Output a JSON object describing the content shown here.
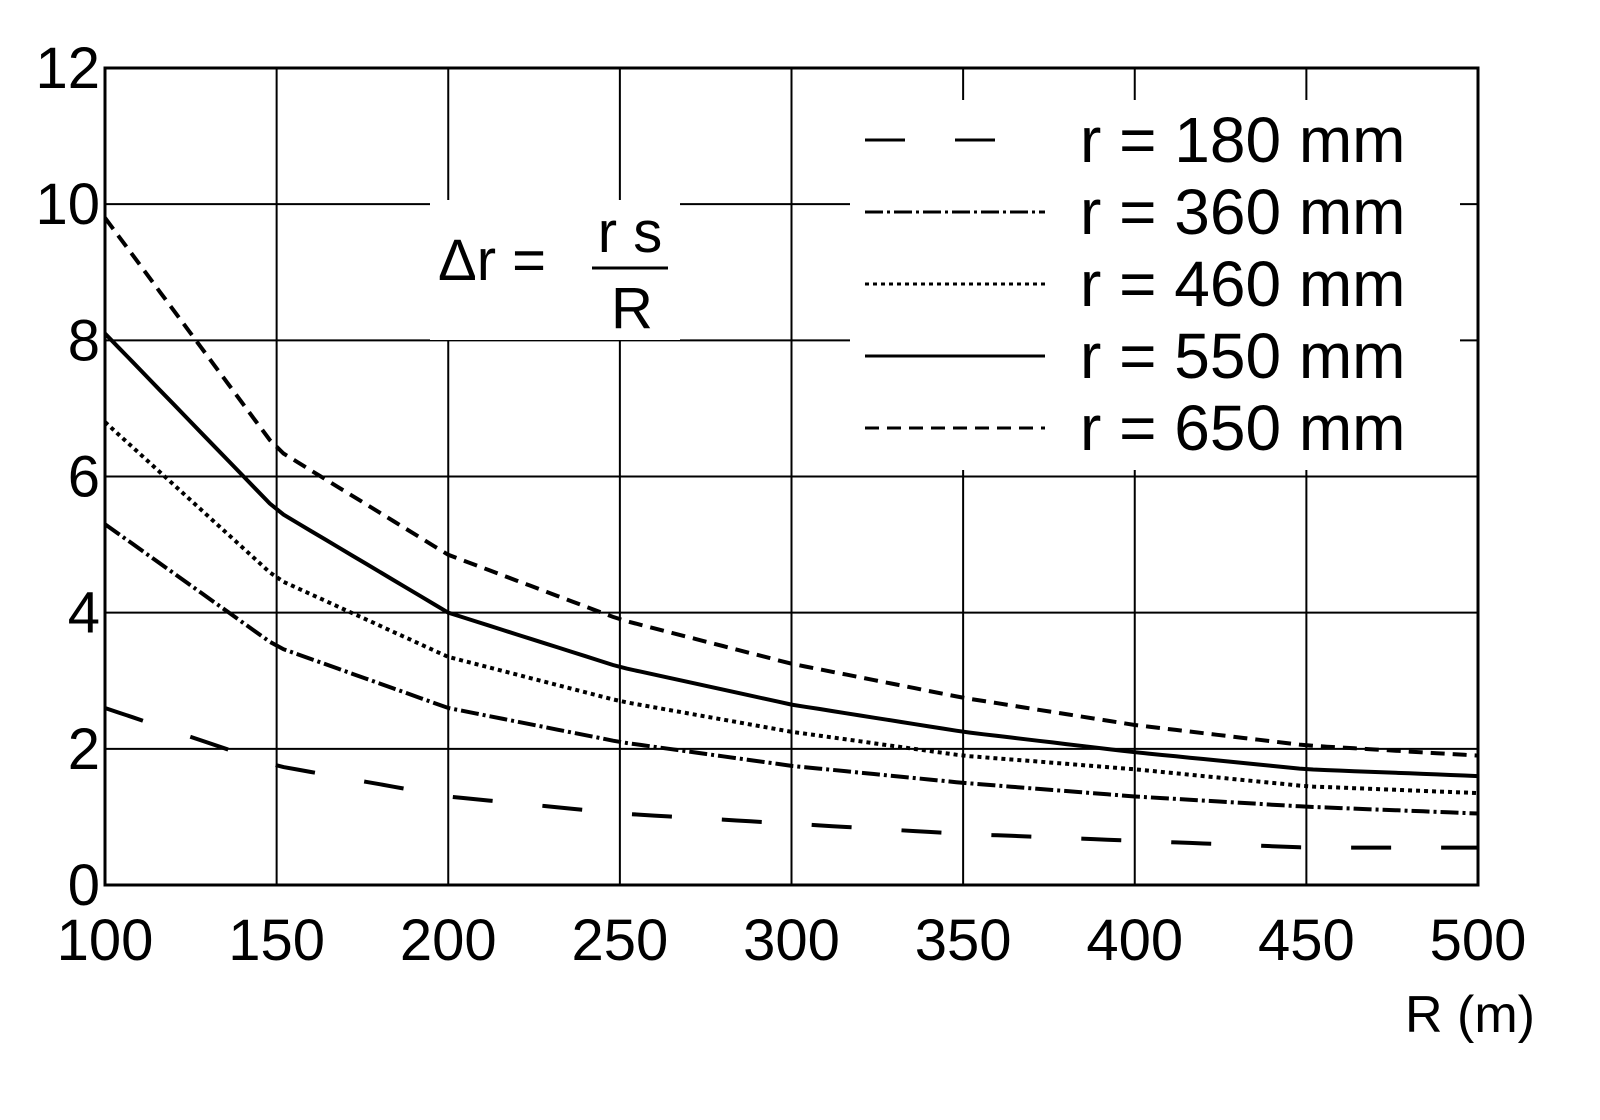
{
  "chart_data": {
    "type": "line",
    "title": "",
    "xlabel": "R (m)",
    "ylabel": "",
    "xlim": [
      100,
      500
    ],
    "ylim": [
      0,
      12
    ],
    "grid": true,
    "legend_position": "upper right",
    "x": [
      100,
      150,
      200,
      250,
      300,
      350,
      400,
      450,
      500
    ],
    "x_ticks": [
      "100",
      "150",
      "200",
      "250",
      "300",
      "350",
      "400",
      "450",
      "500"
    ],
    "y_ticks": [
      "0",
      "2",
      "4",
      "6",
      "8",
      "10",
      "12"
    ],
    "annotation": {
      "lhs": "Δr =",
      "numerator": "r s",
      "denominator": "R"
    },
    "series": [
      {
        "name": "r = 180 mm",
        "style": "long-dash",
        "values": [
          2.6,
          1.75,
          1.3,
          1.05,
          0.9,
          0.75,
          0.65,
          0.55,
          0.55
        ]
      },
      {
        "name": "r = 360 mm",
        "style": "dash-dot",
        "values": [
          5.3,
          3.5,
          2.6,
          2.1,
          1.75,
          1.5,
          1.3,
          1.15,
          1.05
        ]
      },
      {
        "name": "r = 460 mm",
        "style": "dotted",
        "values": [
          6.8,
          4.5,
          3.35,
          2.7,
          2.25,
          1.9,
          1.7,
          1.45,
          1.35
        ]
      },
      {
        "name": "r = 550 mm",
        "style": "solid",
        "values": [
          8.1,
          5.5,
          4.0,
          3.2,
          2.65,
          2.25,
          1.95,
          1.7,
          1.6
        ]
      },
      {
        "name": "r = 650 mm",
        "style": "dashed",
        "values": [
          9.8,
          6.4,
          4.85,
          3.9,
          3.25,
          2.75,
          2.35,
          2.05,
          1.9
        ]
      }
    ]
  },
  "legend": [
    {
      "label": "r = 180 mm",
      "dash": "40 50"
    },
    {
      "label": "r = 360 mm",
      "dash": "18 4 3 4"
    },
    {
      "label": "r = 460 mm",
      "dash": "4 4"
    },
    {
      "label": "r = 550 mm",
      "dash": "none"
    },
    {
      "label": "r = 650 mm",
      "dash": "14 8"
    }
  ],
  "colors": {
    "line": "#000000",
    "background": "#ffffff"
  }
}
